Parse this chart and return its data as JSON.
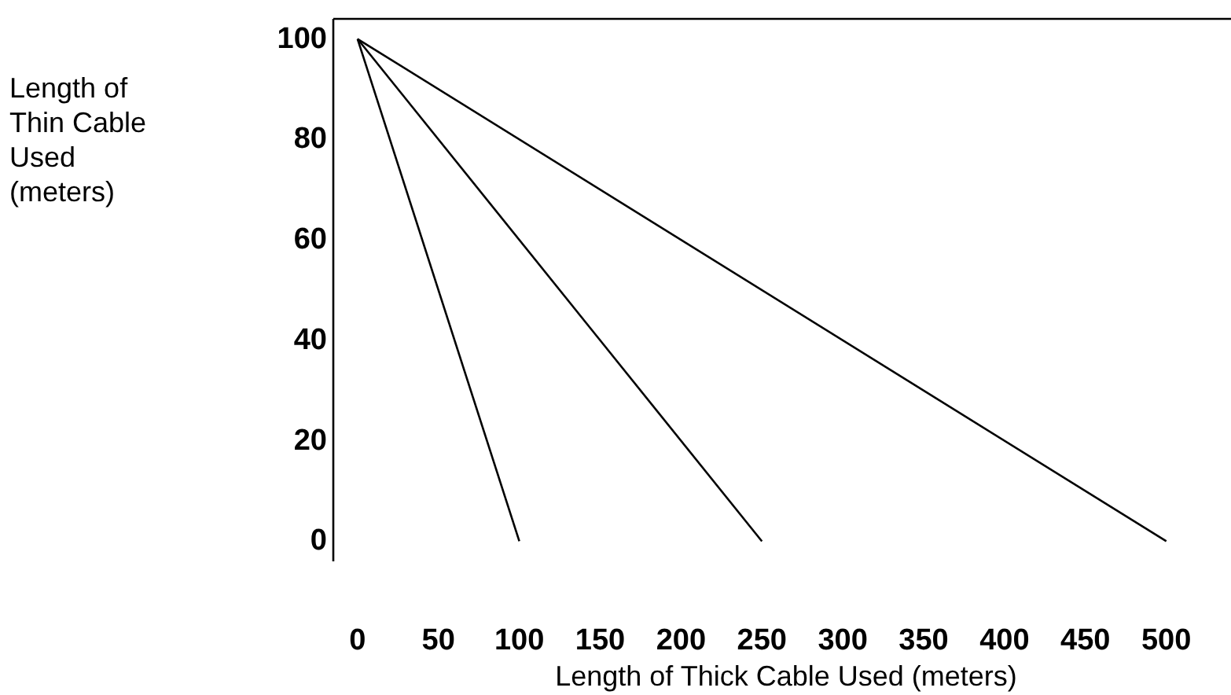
{
  "chart_data": {
    "type": "line",
    "xlabel": "Length of Thick Cable Used (meters)",
    "ylabel": "Length of Thin Cable Used (meters)",
    "series": [
      {
        "color": "#000000",
        "x": [
          0,
          100
        ],
        "values": [
          100,
          0
        ]
      },
      {
        "color": "#000000",
        "x": [
          0,
          250
        ],
        "values": [
          100,
          0
        ]
      },
      {
        "color": "#000000",
        "x": [
          0,
          500
        ],
        "values": [
          100,
          0
        ]
      }
    ],
    "xlim": [
      -15,
      540
    ],
    "ylim": [
      -4,
      104
    ],
    "xticks": [
      0,
      50,
      100,
      150,
      200,
      250,
      300,
      350,
      400,
      450,
      500
    ],
    "yticks": [
      0,
      20,
      40,
      60,
      80,
      100
    ],
    "grid": false,
    "marker": "none",
    "line_style": "solid"
  }
}
